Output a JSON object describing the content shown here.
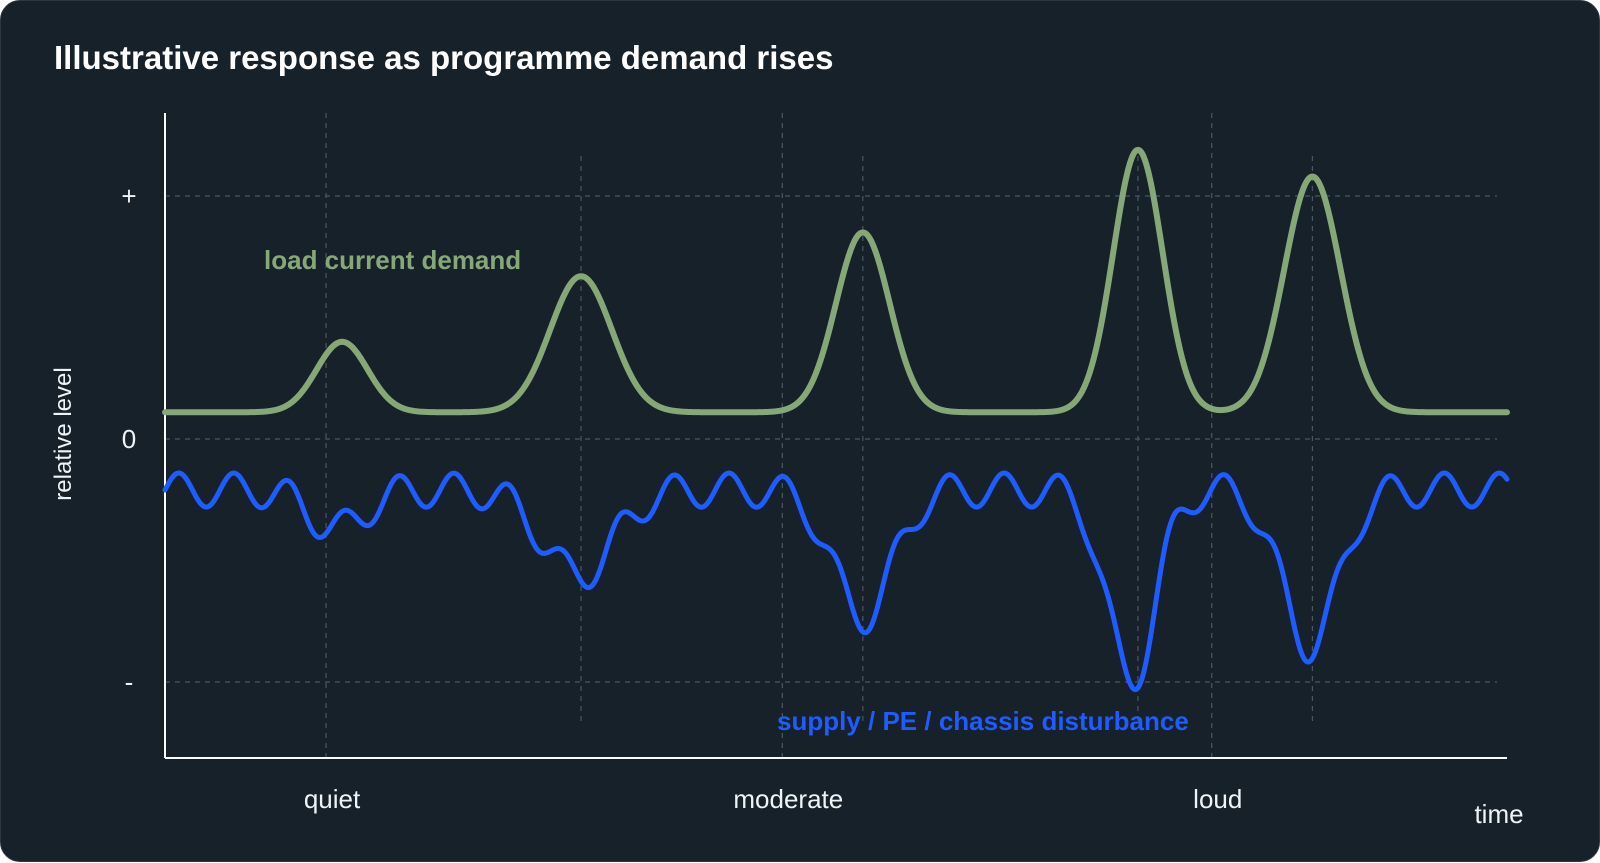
{
  "chart_data": {
    "type": "line",
    "title": "Illustrative response as programme demand rises",
    "xlabel": "time",
    "ylabel": "relative level",
    "y_ticks": [
      "+",
      "0",
      "-"
    ],
    "y_tick_values": [
      1,
      0,
      -1
    ],
    "ylim": [
      -1.33,
      1.33
    ],
    "xlim": [
      0,
      100
    ],
    "x_categories": [
      {
        "label": "quiet",
        "x": 12
      },
      {
        "label": "moderate",
        "x": 46
      },
      {
        "label": "loud",
        "x": 78
      }
    ],
    "grid": true,
    "legend": "inline labels",
    "colors": {
      "background": "#17212a",
      "load": "#86a877",
      "disturbance": "#1e5cff",
      "text": "#eef3f6",
      "grid": "#4a5661"
    },
    "peak_markers_x": [
      31,
      52,
      72.5,
      85.5
    ],
    "series": [
      {
        "name": "load current demand",
        "color": "#86a877",
        "baseline": 0.11,
        "peaks": [
          {
            "x": 13.2,
            "height": 0.29,
            "width": 1.9
          },
          {
            "x": 31,
            "height": 0.56,
            "width": 2.3
          },
          {
            "x": 52,
            "height": 0.74,
            "width": 2.0
          },
          {
            "x": 72.5,
            "height": 1.08,
            "width": 1.85
          },
          {
            "x": 85.5,
            "height": 0.97,
            "width": 2.1
          }
        ]
      },
      {
        "name": "supply / PE / chassis disturbance",
        "color": "#1e5cff",
        "baseline": -0.21,
        "ripple_amplitude": 0.07,
        "ripple_period": 4.1,
        "dips": [
          {
            "x": 12.8,
            "depth": 0.16,
            "width": 2.0
          },
          {
            "x": 30.8,
            "depth": 0.35,
            "width": 2.6
          },
          {
            "x": 52.0,
            "depth": 0.52,
            "width": 2.2
          },
          {
            "x": 72.0,
            "depth": 0.78,
            "width": 1.8
          },
          {
            "x": 85.3,
            "depth": 0.64,
            "width": 2.1
          }
        ]
      }
    ]
  }
}
